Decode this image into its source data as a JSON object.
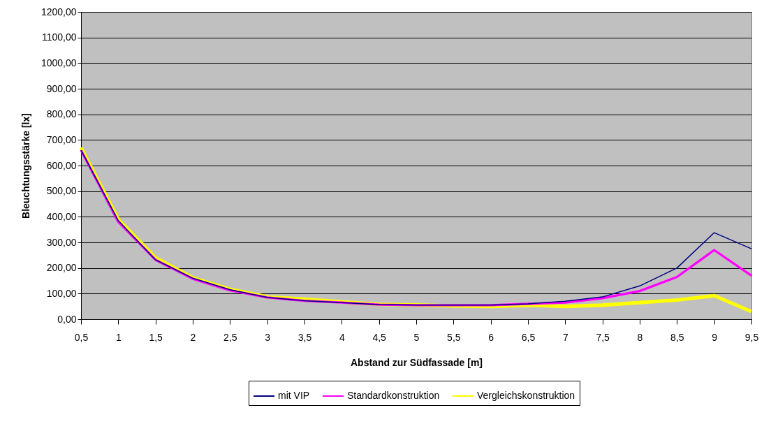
{
  "chart_data": {
    "type": "line",
    "xlabel": "Abstand zur Südfassade [m]",
    "ylabel": "Bleuchtungsstärke [lx]",
    "categories": [
      "0,5",
      "1",
      "1,5",
      "2",
      "2,5",
      "3",
      "3,5",
      "4",
      "4,5",
      "5",
      "5,5",
      "6",
      "6,5",
      "7",
      "7,5",
      "8",
      "8,5",
      "9",
      "9,5"
    ],
    "series": [
      {
        "name": "mit VIP",
        "color": "#000080",
        "values": [
          660,
          385,
          232,
          160,
          115,
          85,
          72,
          65,
          57,
          55,
          55,
          55,
          60,
          70,
          87,
          130,
          200,
          338,
          275
        ]
      },
      {
        "name": "Standardkonstruktion",
        "color": "#ff00ff",
        "values": [
          660,
          380,
          232,
          158,
          113,
          85,
          72,
          65,
          57,
          55,
          55,
          55,
          60,
          65,
          82,
          110,
          165,
          270,
          170
        ]
      },
      {
        "name": "Vergleichskonstruktion",
        "color": "#ffff00",
        "values": [
          670,
          390,
          240,
          162,
          117,
          87,
          78,
          68,
          58,
          56,
          52,
          50,
          55,
          50,
          55,
          65,
          75,
          92,
          30
        ]
      }
    ],
    "ylim": [
      0,
      1200
    ],
    "yticks": [
      {
        "value": 0,
        "label": "0,00"
      },
      {
        "value": 100,
        "label": "100,00"
      },
      {
        "value": 200,
        "label": "200,00"
      },
      {
        "value": 300,
        "label": "300,00"
      },
      {
        "value": 400,
        "label": "400,00"
      },
      {
        "value": 500,
        "label": "500,00"
      },
      {
        "value": 600,
        "label": "600,00"
      },
      {
        "value": 700,
        "label": "700,00"
      },
      {
        "value": 800,
        "label": "800,00"
      },
      {
        "value": 900,
        "label": "900,00"
      },
      {
        "value": 1000,
        "label": "1000,00"
      },
      {
        "value": 1100,
        "label": "1100,00"
      },
      {
        "value": 1200,
        "label": "1200,00"
      }
    ],
    "grid": "y",
    "legend": "bottom",
    "marker": "none",
    "line_style": "solid"
  }
}
